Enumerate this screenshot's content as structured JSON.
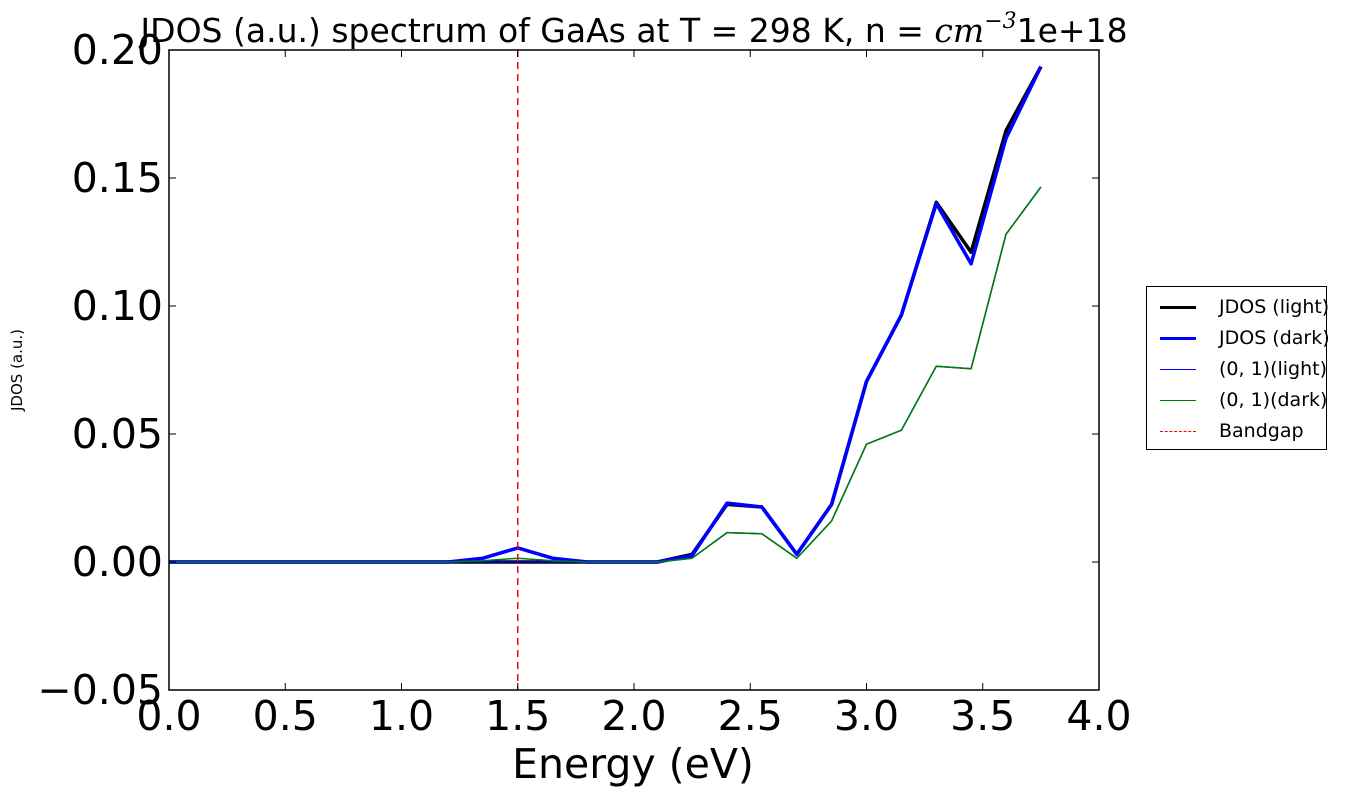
{
  "chart_data": {
    "type": "line",
    "title_prefix": "JDOS (a.u.) spectrum of GaAs at T = 298 K, n = ",
    "title_unit_base": "cm",
    "title_unit_exp": "−3",
    "title_suffix": "1e+18",
    "xlabel": "Energy (eV)",
    "ylabel": "JDOS (a.u.)",
    "xlim": [
      0.0,
      4.0
    ],
    "ylim": [
      -0.05,
      0.2
    ],
    "xticks": [
      "0.0",
      "0.5",
      "1.0",
      "1.5",
      "2.0",
      "2.5",
      "3.0",
      "3.5",
      "4.0"
    ],
    "xtick_values": [
      0.0,
      0.5,
      1.0,
      1.5,
      2.0,
      2.5,
      3.0,
      3.5,
      4.0
    ],
    "yticks": [
      "−0.05",
      "0.00",
      "0.05",
      "0.10",
      "0.15",
      "0.20"
    ],
    "ytick_values": [
      -0.05,
      0.0,
      0.05,
      0.1,
      0.15,
      0.2
    ],
    "grid": false,
    "legend_placement": "outside right",
    "x": [
      0.0,
      0.15,
      0.3,
      0.45,
      0.6,
      0.75,
      0.9,
      1.05,
      1.2,
      1.35,
      1.5,
      1.65,
      1.8,
      1.95,
      2.1,
      2.25,
      2.4,
      2.55,
      2.7,
      2.85,
      3.0,
      3.15,
      3.3,
      3.45,
      3.6,
      3.75
    ],
    "series": [
      {
        "name": "JDOS (light)",
        "color": "#000000",
        "width": 3.5,
        "values": [
          0,
          0,
          0,
          0,
          0,
          0,
          0,
          0,
          0,
          0,
          0,
          0,
          0,
          0,
          0,
          0.003,
          0.0225,
          0.0215,
          0.003,
          0.0225,
          0.0705,
          0.0965,
          0.1405,
          0.121,
          0.1685,
          0.1935
        ]
      },
      {
        "name": "JDOS (dark)",
        "color": "#0000ff",
        "width": 3.5,
        "values": [
          0,
          0,
          0,
          0,
          0,
          0,
          0,
          0,
          0,
          0.0015,
          0.0055,
          0.0015,
          0,
          0,
          0,
          0.0025,
          0.023,
          0.0215,
          0.003,
          0.0225,
          0.0705,
          0.0965,
          0.14,
          0.1165,
          0.1655,
          0.1935
        ]
      },
      {
        "name": "(0, 1)(light)",
        "color": "#0000ff",
        "width": 1.5,
        "values": [
          0,
          0,
          0,
          0,
          0,
          0,
          0,
          0,
          0,
          0,
          0,
          0,
          0,
          0,
          0,
          0.0015,
          0.0115,
          0.011,
          0.0015,
          0.016,
          0.046,
          0.0515,
          0.0765,
          0.0755,
          0.128,
          0.1465
        ]
      },
      {
        "name": "(0, 1)(dark)",
        "color": "#008000",
        "width": 1.5,
        "values": [
          0,
          0,
          0,
          0,
          0,
          0,
          0,
          0,
          0,
          0.0005,
          0.0015,
          0.0005,
          0,
          0,
          0,
          0.0015,
          0.0115,
          0.011,
          0.0015,
          0.016,
          0.046,
          0.0515,
          0.0765,
          0.0755,
          0.128,
          0.1465
        ]
      }
    ],
    "vline": {
      "name": "Bandgap",
      "x": 1.5,
      "color": "#ff0000"
    }
  }
}
